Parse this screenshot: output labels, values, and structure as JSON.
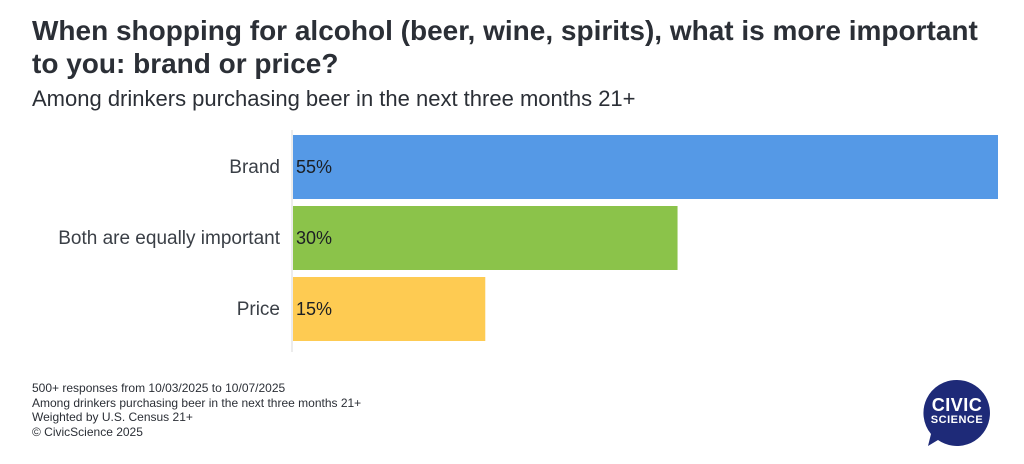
{
  "chart_data": {
    "type": "bar",
    "orientation": "horizontal",
    "title": "When shopping for alcohol (beer, wine, spirits), what is more important to you: brand or price?",
    "subtitle": "Among drinkers purchasing beer in the next three months 21+",
    "categories": [
      "Brand",
      "Both are equally important",
      "Price"
    ],
    "values": [
      55,
      30,
      15
    ],
    "value_labels": [
      "55%",
      "30%",
      "15%"
    ],
    "colors": [
      "#5599e6",
      "#8bc34a",
      "#fecb52"
    ],
    "xlim": [
      0,
      55
    ],
    "grid": false,
    "legend": "none"
  },
  "footer": {
    "lines": [
      "500+ responses from 10/03/2025 to 10/07/2025",
      "Among drinkers purchasing beer in the next three months 21+",
      "Weighted by U.S. Census 21+",
      "© CivicScience 2025"
    ]
  },
  "logo": {
    "top_text": "CIVIC",
    "bottom_text": "SCIENCE",
    "color": "#1e2a78"
  }
}
